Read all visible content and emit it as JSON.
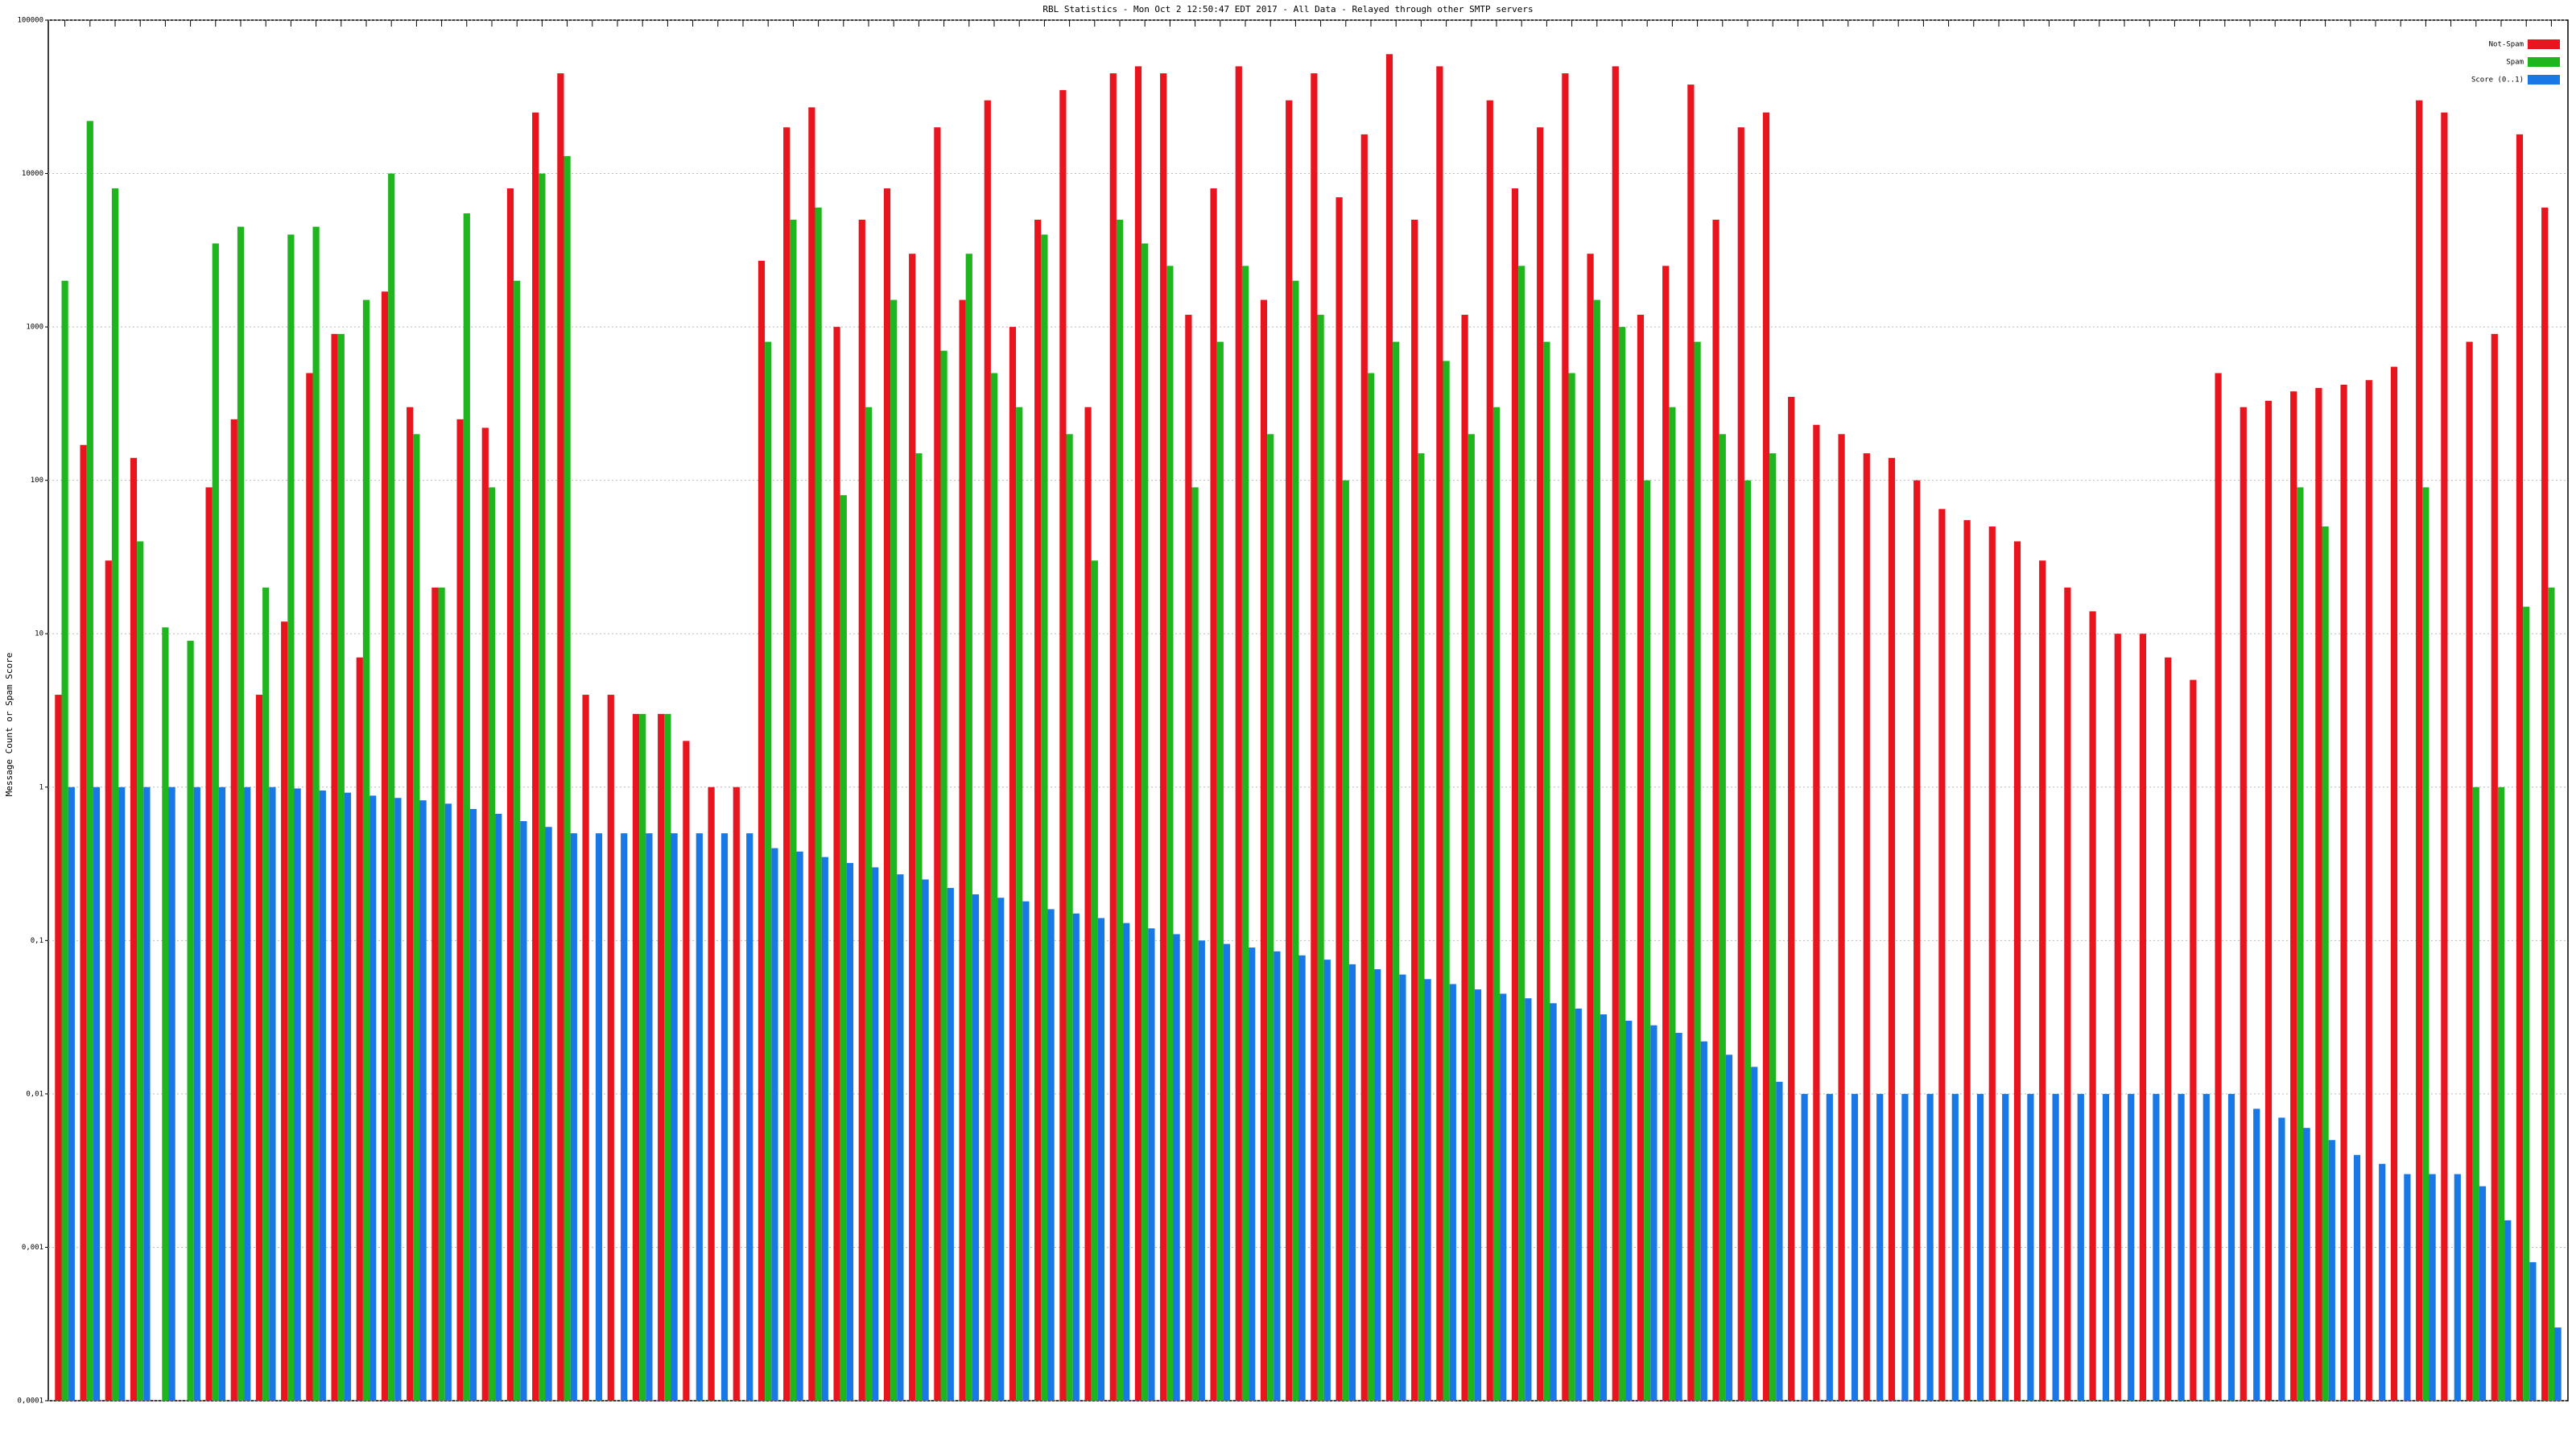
{
  "chart_data": {
    "type": "bar",
    "title": "RBL Statistics - Mon Oct  2 12:50:47 EDT 2017 - All Data - Relayed through other SMTP servers",
    "y_label": "Message Count or Spam Score",
    "log_scale": true,
    "grid": true,
    "legend": "top-right",
    "ylim": [
      0.0001,
      100000
    ],
    "yticks": [
      {
        "value": 0.0001,
        "label": "0,0001"
      },
      {
        "value": 0.001,
        "label": "0,001"
      },
      {
        "value": 0.01,
        "label": "0,01"
      },
      {
        "value": 0.1,
        "label": "0,1"
      },
      1,
      10,
      100,
      1000,
      10000,
      100000
    ],
    "categories": [
      null,
      null,
      null,
      null,
      null,
      null,
      null,
      null,
      null,
      null,
      null,
      null,
      null,
      null,
      null,
      null,
      null,
      null,
      null,
      null,
      null,
      null,
      null,
      null,
      null,
      null,
      null,
      null,
      null,
      null,
      null,
      null,
      null,
      null,
      null,
      null,
      null,
      null,
      null,
      null,
      null,
      null,
      null,
      null,
      null,
      null,
      null,
      null,
      null,
      null,
      null,
      null,
      null,
      null,
      null,
      null,
      null,
      null,
      null,
      null,
      null,
      null,
      null,
      null,
      null,
      null,
      null,
      null,
      null,
      null,
      null,
      null,
      null,
      null,
      null,
      null,
      null,
      null,
      null,
      null,
      null,
      null,
      null,
      null,
      null,
      null,
      null,
      null,
      null,
      null,
      null,
      null,
      null,
      null,
      null,
      null,
      null,
      null,
      null,
      null
    ],
    "series": [
      {
        "name": "Not-Spam",
        "color": "#e8141e",
        "values": [
          4,
          170,
          30,
          140,
          null,
          null,
          90,
          250,
          4,
          12,
          500,
          900,
          7,
          1700,
          300,
          20,
          250,
          220,
          8000,
          25000,
          45000,
          4,
          4,
          3,
          3,
          2,
          1,
          1,
          2700,
          20000,
          27000,
          1000,
          5000,
          8000,
          3000,
          20000,
          1500,
          30000,
          1000,
          5000,
          35000,
          300,
          45000,
          50000,
          45000,
          1200,
          8000,
          50000,
          1500,
          30000,
          45000,
          7000,
          18000,
          60000,
          5000,
          50000,
          1200,
          30000,
          8000,
          20000,
          45000,
          3000,
          50000,
          1200,
          2500,
          38000,
          5000,
          20000,
          25000,
          350,
          230,
          200,
          150,
          140,
          100,
          65,
          55,
          50,
          40,
          30,
          20,
          14,
          10,
          10,
          7,
          5,
          500,
          300,
          330,
          380,
          400,
          420,
          450,
          550,
          30000,
          25000,
          800,
          900,
          18000,
          6000
        ]
      },
      {
        "name": "Spam",
        "color": "#1fb51f",
        "values": [
          2000,
          22000,
          8000,
          40,
          11,
          9,
          3500,
          4500,
          20,
          4000,
          4500,
          900,
          1500,
          10000,
          200,
          20,
          5500,
          90,
          2000,
          10000,
          13000,
          null,
          null,
          3,
          3,
          null,
          null,
          null,
          800,
          5000,
          6000,
          80,
          300,
          1500,
          150,
          700,
          3000,
          500,
          300,
          4000,
          200,
          30,
          5000,
          3500,
          2500,
          90,
          800,
          2500,
          200,
          2000,
          1200,
          100,
          500,
          800,
          150,
          600,
          200,
          300,
          2500,
          800,
          500,
          1500,
          1000,
          100,
          300,
          800,
          200,
          100,
          150,
          null,
          null,
          null,
          null,
          null,
          null,
          null,
          null,
          null,
          null,
          null,
          null,
          null,
          null,
          null,
          null,
          null,
          null,
          null,
          null,
          90,
          50,
          null,
          null,
          null,
          90,
          null,
          1,
          1,
          15,
          20
        ]
      },
      {
        "name": "Score (0..1)",
        "color": "#1a78e6",
        "values": [
          1,
          1,
          1,
          1,
          1,
          1,
          1,
          1,
          1,
          0.98,
          0.95,
          0.92,
          0.88,
          0.85,
          0.82,
          0.78,
          0.72,
          0.67,
          0.6,
          0.55,
          0.5,
          0.5,
          0.5,
          0.5,
          0.5,
          0.5,
          0.5,
          0.5,
          0.4,
          0.38,
          0.35,
          0.32,
          0.3,
          0.27,
          0.25,
          0.22,
          0.2,
          0.19,
          0.18,
          0.16,
          0.15,
          0.14,
          0.13,
          0.12,
          0.11,
          0.1,
          0.095,
          0.09,
          0.085,
          0.08,
          0.075,
          0.07,
          0.065,
          0.06,
          0.056,
          0.052,
          0.048,
          0.045,
          0.042,
          0.039,
          0.036,
          0.033,
          0.03,
          0.028,
          0.025,
          0.022,
          0.018,
          0.015,
          0.012,
          0.01,
          0.01,
          0.01,
          0.01,
          0.01,
          0.01,
          0.01,
          0.01,
          0.01,
          0.01,
          0.01,
          0.01,
          0.01,
          0.01,
          0.01,
          0.01,
          0.01,
          0.01,
          0.008,
          0.007,
          0.006,
          0.005,
          0.004,
          0.0035,
          0.003,
          0.003,
          0.003,
          0.0025,
          0.0015,
          0.0008,
          0.0003
        ]
      }
    ]
  }
}
